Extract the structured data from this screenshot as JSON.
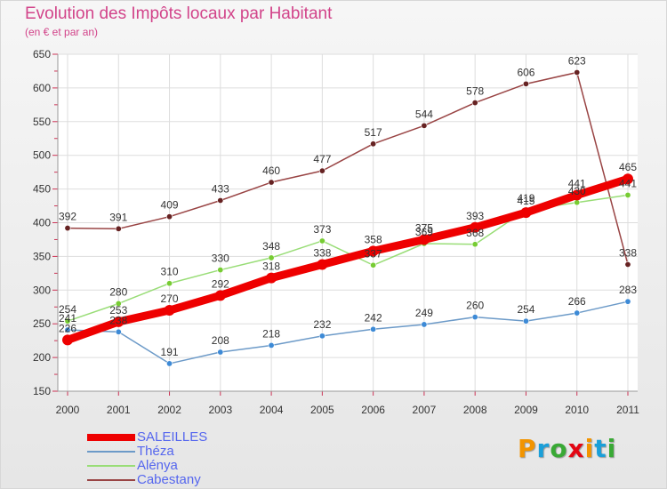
{
  "chart_data": {
    "type": "line",
    "title": "Evolution des Impôts locaux par Habitant",
    "subtitle": "(en € et par an)",
    "xlabel": "",
    "ylabel": "",
    "categories": [
      "2000",
      "2001",
      "2002",
      "2003",
      "2004",
      "2005",
      "2006",
      "2007",
      "2008",
      "2009",
      "2010",
      "2011"
    ],
    "ylim": [
      150,
      650
    ],
    "yticks": [
      "150",
      "200",
      "250",
      "300",
      "350",
      "400",
      "450",
      "500",
      "550",
      "600",
      "650"
    ],
    "grid": true,
    "legend_position": "bottom-left",
    "series": [
      {
        "name": "SALEILLES",
        "color": "#ee0000",
        "marker": "#ee0000",
        "values": [
          226,
          253,
          270,
          292,
          318,
          338,
          358,
          375,
          393,
          415,
          441,
          465
        ],
        "labels": [
          "226",
          "253",
          "270",
          "292",
          "318",
          "338",
          "358",
          "375",
          "393",
          "415",
          "441",
          "465"
        ]
      },
      {
        "name": "Théza",
        "color": "#6c9ac8",
        "marker": "#3d8ad6",
        "values": [
          241,
          238,
          191,
          208,
          218,
          232,
          242,
          249,
          260,
          254,
          266,
          283
        ],
        "labels": [
          "241",
          "238",
          "191",
          "208",
          "218",
          "232",
          "242",
          "249",
          "260",
          "254",
          "266",
          "283"
        ]
      },
      {
        "name": "Alénya",
        "color": "#99dd77",
        "marker": "#77cc33",
        "values": [
          254,
          280,
          310,
          330,
          348,
          373,
          337,
          369,
          368,
          419,
          430,
          441
        ],
        "labels": [
          "254",
          "280",
          "310",
          "330",
          "348",
          "373",
          "337",
          "369",
          "368",
          "419",
          "430",
          "441"
        ]
      },
      {
        "name": "Cabestany",
        "color": "#994444",
        "marker": "#662222",
        "values": [
          392,
          391,
          409,
          433,
          460,
          477,
          517,
          544,
          578,
          606,
          623,
          338
        ],
        "labels": [
          "392",
          "391",
          "409",
          "433",
          "460",
          "477",
          "517",
          "544",
          "578",
          "606",
          "623",
          "338"
        ]
      }
    ]
  },
  "brand": {
    "letters": [
      "P",
      "r",
      "o",
      "x",
      "i",
      "t",
      "i"
    ],
    "colors": [
      "#f29400",
      "#1a9fd9",
      "#39a935",
      "#e30613",
      "#f29400",
      "#1a9fd9",
      "#39a935"
    ]
  }
}
